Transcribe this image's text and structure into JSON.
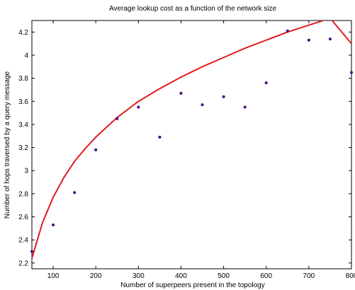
{
  "chart_data": {
    "type": "scatter",
    "title": "Average lookup cost as a function of the network size",
    "xlabel": "Number of superpeers present in the topology",
    "ylabel": "Number of hops traversed by a query message",
    "xlim": [
      50,
      800
    ],
    "ylim": [
      2.15,
      4.3
    ],
    "x_ticks": [
      100,
      200,
      300,
      400,
      500,
      600,
      700,
      800
    ],
    "y_ticks": [
      2.2,
      2.4,
      2.6,
      2.8,
      3,
      3.2,
      3.4,
      3.6,
      3.8,
      4,
      4.2
    ],
    "x_tick_labels": [
      "100",
      "200",
      "300",
      "400",
      "500",
      "600",
      "700",
      "800"
    ],
    "y_tick_labels": [
      "2.2",
      "2.4",
      "2.6",
      "2.8",
      "3",
      "3.2",
      "3.4",
      "3.6",
      "3.8",
      "4",
      "4.2"
    ],
    "grid": false,
    "series": [
      {
        "kind": "points",
        "color": "#4b0082",
        "x": [
          50,
          100,
          150,
          200,
          250,
          300,
          350,
          400,
          450,
          500,
          550,
          600,
          650,
          700,
          750,
          800
        ],
        "y": [
          2.3,
          2.53,
          2.81,
          3.18,
          3.45,
          3.55,
          3.29,
          3.67,
          3.57,
          3.64,
          3.55,
          3.76,
          4.21,
          4.13,
          4.14,
          3.85
        ]
      },
      {
        "kind": "line",
        "color": "#e31a1c",
        "x": [
          50,
          75,
          100,
          125,
          150,
          175,
          200,
          250,
          300,
          350,
          400,
          450,
          500,
          550,
          600,
          650,
          700,
          750,
          800
        ],
        "y": [
          2.24,
          2.55,
          2.77,
          2.94,
          3.08,
          3.19,
          3.29,
          3.46,
          3.6,
          3.71,
          3.81,
          3.9,
          3.98,
          4.06,
          4.13,
          4.2,
          4.26,
          4.32,
          4.1
        ]
      }
    ]
  }
}
